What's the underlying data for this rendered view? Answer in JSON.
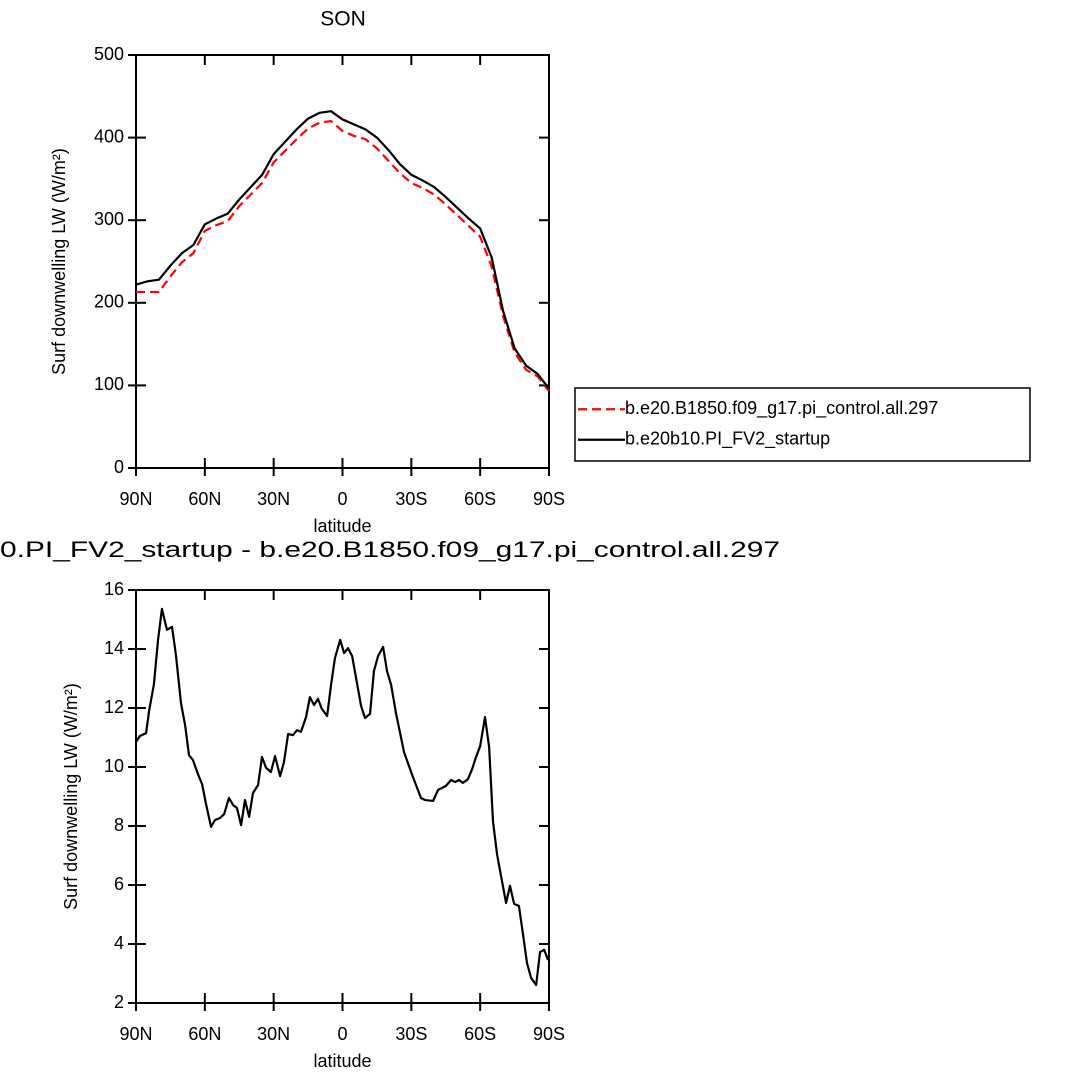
{
  "chart_data": [
    {
      "type": "line",
      "title": "SON",
      "xlabel": "latitude",
      "ylabel": "Surf downwelling LW (W/m²)",
      "xlim": [
        90,
        -90
      ],
      "ylim": [
        0,
        500
      ],
      "xticks": [
        {
          "value": 90,
          "label": "90N"
        },
        {
          "value": 60,
          "label": "60N"
        },
        {
          "value": 30,
          "label": "30N"
        },
        0,
        {
          "value": -30,
          "label": "30S"
        },
        {
          "value": -60,
          "label": "60S"
        },
        {
          "value": -90,
          "label": "90S"
        }
      ],
      "yticks": [
        0,
        100,
        200,
        300,
        400,
        500
      ],
      "legend": "outside right",
      "x": [
        90,
        85,
        80,
        75,
        70,
        65,
        60,
        55,
        50,
        45,
        40,
        35,
        30,
        25,
        20,
        15,
        10,
        5,
        0,
        -5,
        -10,
        -15,
        -20,
        -25,
        -30,
        -35,
        -40,
        -45,
        -50,
        -55,
        -60,
        -65,
        -70,
        -75,
        -80,
        -85,
        -90
      ],
      "series": [
        {
          "name": "b.e20.B1850.f09_g17.pi_control.all.297",
          "color": "#ff0000",
          "dashed": true,
          "values": [
            213,
            213,
            213,
            232,
            249,
            260,
            287,
            294,
            299,
            317,
            331,
            345,
            370,
            384,
            398,
            411,
            418,
            420,
            408,
            402,
            398,
            387,
            372,
            357,
            345,
            339,
            331,
            319,
            306,
            293,
            280,
            244,
            184,
            140,
            119,
            111,
            93
          ]
        },
        {
          "name": "b.e20b10.PI_FV2_startup",
          "color": "#000000",
          "dashed": false,
          "values": [
            222,
            226,
            228,
            245,
            260,
            270,
            295,
            302,
            308,
            325,
            340,
            355,
            380,
            395,
            410,
            423,
            430,
            432,
            422,
            416,
            410,
            400,
            385,
            368,
            355,
            348,
            340,
            328,
            315,
            302,
            290,
            255,
            190,
            145,
            124,
            114,
            96
          ]
        }
      ]
    },
    {
      "type": "line",
      "title": "0.PI_FV2_startup - b.e20.B1850.f09_g17.pi_control.all.297",
      "xlabel": "latitude",
      "ylabel": "Surf downwelling LW (W/m²)",
      "xlim": [
        90,
        -90
      ],
      "ylim": [
        2,
        16
      ],
      "xticks": [
        {
          "value": 90,
          "label": "90N"
        },
        {
          "value": 60,
          "label": "60N"
        },
        {
          "value": 30,
          "label": "30N"
        },
        0,
        {
          "value": -30,
          "label": "30S"
        },
        {
          "value": -60,
          "label": "60S"
        },
        {
          "value": -90,
          "label": "90S"
        }
      ],
      "yticks": [
        2,
        4,
        6,
        8,
        10,
        12,
        14,
        16
      ],
      "x": [
        90,
        88.3,
        85.6,
        84.3,
        82.2,
        80.4,
        78.7,
        76.5,
        74.3,
        72.6,
        70.4,
        68.6,
        66.9,
        65.2,
        63.0,
        61.2,
        59.5,
        57.3,
        55.6,
        53.4,
        51.6,
        49.5,
        47.7,
        46.0,
        44.2,
        42.5,
        40.7,
        39.0,
        36.8,
        35.1,
        33.3,
        31.2,
        29.4,
        27.2,
        25.5,
        23.7,
        21.6,
        19.8,
        18.1,
        15.9,
        14.2,
        12.4,
        10.7,
        9.0,
        6.7,
        5.0,
        3.3,
        1.0,
        -0.7,
        -2.4,
        -4.2,
        -6.3,
        -8.1,
        -9.8,
        -12.0,
        -13.7,
        -15.5,
        -17.7,
        -19.4,
        -21.2,
        -23.3,
        -26.8,
        -30.7,
        -34.2,
        -36.0,
        -39.5,
        -41.6,
        -45.1,
        -47.3,
        -49.1,
        -50.8,
        -52.5,
        -54.7,
        -56.5,
        -58.2,
        -60.0,
        -62.1,
        -63.9,
        -65.6,
        -67.4,
        -69.5,
        -71.3,
        -73.0,
        -74.8,
        -76.9,
        -78.7,
        -80.4,
        -82.2,
        -84.4,
        -86.1,
        -87.9,
        -89.6
      ],
      "series": [
        {
          "color": "#000000",
          "dashed": false,
          "values": [
            10.85,
            11.05,
            11.15,
            11.9,
            12.8,
            14.3,
            15.36,
            14.65,
            14.75,
            13.8,
            12.17,
            11.42,
            10.4,
            10.24,
            9.76,
            9.42,
            8.75,
            7.97,
            8.2,
            8.27,
            8.4,
            8.95,
            8.71,
            8.61,
            8.03,
            8.88,
            8.31,
            9.12,
            9.39,
            10.34,
            9.97,
            9.83,
            10.37,
            9.69,
            10.17,
            11.12,
            11.08,
            11.25,
            11.19,
            11.69,
            12.37,
            12.1,
            12.31,
            11.97,
            11.73,
            12.78,
            13.69,
            14.31,
            13.86,
            14.03,
            13.76,
            12.85,
            12.07,
            11.66,
            11.8,
            13.25,
            13.76,
            14.07,
            13.25,
            12.78,
            11.83,
            10.51,
            9.66,
            8.95,
            8.88,
            8.85,
            9.22,
            9.36,
            9.56,
            9.49,
            9.56,
            9.46,
            9.59,
            9.93,
            10.34,
            10.71,
            11.69,
            10.68,
            8.14,
            7.02,
            6.14,
            5.39,
            5.97,
            5.36,
            5.29,
            4.31,
            3.36,
            2.85,
            2.61,
            3.73,
            3.8,
            3.46
          ]
        }
      ]
    }
  ]
}
